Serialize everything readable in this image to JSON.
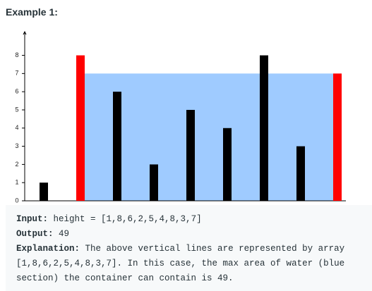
{
  "heading": "Example 1:",
  "chart_data": {
    "type": "bar",
    "categories": [
      null,
      null,
      null,
      null,
      null,
      null,
      null,
      null,
      null
    ],
    "values": [
      1,
      8,
      6,
      2,
      5,
      4,
      8,
      3,
      7
    ],
    "color": "#000000",
    "highlight": [
      1,
      8
    ],
    "highlight_color": "#ff0000",
    "water_color": "#9fcbff",
    "ylim": [
      0,
      9.3
    ],
    "yticks": [
      0,
      1,
      2,
      3,
      4,
      5,
      6,
      7,
      8
    ]
  },
  "example": {
    "input_label": "Input:",
    "input_text": "height = [1,8,6,2,5,4,8,3,7]",
    "output_label": "Output:",
    "output_text": "49",
    "explanation_label": "Explanation:",
    "explanation_lines": [
      "The above vertical lines are represented by array",
      "[1,8,6,2,5,4,8,3,7]. In this case, the max area of water (blue",
      "section) the container can contain is 49."
    ]
  }
}
